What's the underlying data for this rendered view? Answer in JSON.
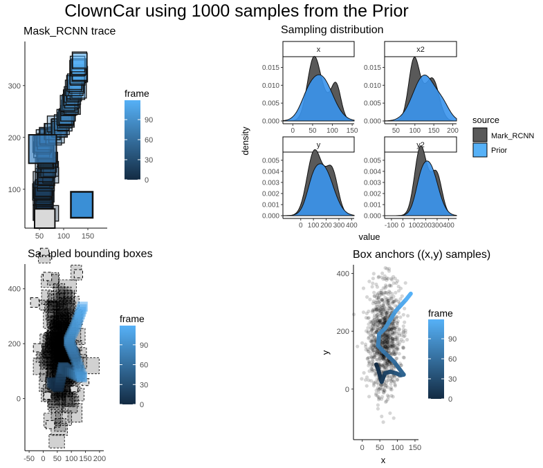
{
  "page_title": "ClownCar using 1000 samples from the Prior",
  "colors": {
    "frame_low": "#132b43",
    "frame_high": "#56b1f7",
    "mask_rcnn_fill": "#595959",
    "prior_fill": "#3a94ec",
    "box_fill": "#d9d9d9"
  },
  "chart_data": [
    {
      "id": "mask-rcnn-trace",
      "type": "scatter",
      "title": "Mask_RCNN trace",
      "x_ticks": [
        50,
        100,
        150
      ],
      "y_ticks": [
        100,
        200,
        300
      ],
      "xlim": [
        20,
        190
      ],
      "ylim": [
        25,
        385
      ],
      "legend": {
        "title": "frame",
        "ticks": [
          0,
          30,
          60,
          90
        ],
        "placement": "right"
      },
      "series": [
        {
          "name": "trace",
          "frames": 120,
          "start": {
            "x": 60,
            "y": 60,
            "w": 50,
            "h": 50
          },
          "end": {
            "x": 132,
            "y": 335,
            "w": 46,
            "h": 46
          }
        }
      ]
    },
    {
      "id": "sampling-distribution",
      "type": "area",
      "title": "Sampling distribution",
      "xlabel": "value",
      "ylabel": "density",
      "legend": {
        "title": "source",
        "entries": [
          "Mark_RCNN",
          "Prior"
        ],
        "placement": "right"
      },
      "facets": [
        {
          "label": "x",
          "x_ticks": [
            "0",
            "50",
            "100",
            "150"
          ],
          "xlim": [
            -25,
            155
          ],
          "y_ticks": [
            "0.000",
            "0.005",
            "0.010",
            "0.015"
          ],
          "ylim": [
            0,
            0.018
          ],
          "series": [
            {
              "name": "Mark_RCNN",
              "peaks": [
                [
                  52,
                  0.0155,
                  16
                ],
                [
                  110,
                  0.0085,
                  12
                ],
                [
                  80,
                  0.0055,
                  22
                ]
              ]
            },
            {
              "name": "Prior",
              "peaks": [
                [
                  70,
                  0.0125,
                  30
                ],
                [
                  35,
                  0.0025,
                  18
                ]
              ]
            }
          ]
        },
        {
          "label": "x2",
          "x_ticks": [
            "50",
            "100",
            "150",
            "200"
          ],
          "xlim": [
            20,
            210
          ],
          "y_ticks": [
            "0.000",
            "0.005",
            "0.010",
            "0.015"
          ],
          "ylim": [
            0,
            0.018
          ],
          "series": [
            {
              "name": "Mark_RCNN",
              "peaks": [
                [
                  97,
                  0.015,
                  14
                ],
                [
                  150,
                  0.0085,
                  16
                ],
                [
                  125,
                  0.006,
                  22
                ]
              ]
            },
            {
              "name": "Prior",
              "peaks": [
                [
                  125,
                  0.0128,
                  30
                ],
                [
                  175,
                  0.003,
                  18
                ]
              ]
            }
          ]
        },
        {
          "label": "y",
          "x_ticks": [
            "0",
            "100",
            "200",
            "300",
            "400"
          ],
          "xlim": [
            -140,
            420
          ],
          "y_ticks": [
            "0.000",
            "0.001",
            "0.002",
            "0.003",
            "0.004",
            "0.005"
          ],
          "ylim": [
            0,
            0.0058
          ],
          "series": [
            {
              "name": "Mark_RCNN",
              "peaks": [
                [
                  100,
                  0.0048,
                  55
                ],
                [
                  250,
                  0.003,
                  45
                ],
                [
                  180,
                  0.002,
                  70
                ]
              ]
            },
            {
              "name": "Prior",
              "peaks": [
                [
                  175,
                  0.0044,
                  80
                ],
                [
                  90,
                  0.0012,
                  45
                ]
              ]
            }
          ]
        },
        {
          "label": "y2",
          "x_ticks": [
            "-100",
            "0",
            "100",
            "200",
            "300",
            "400"
          ],
          "xlim": [
            -160,
            470
          ],
          "y_ticks": [
            "0.000",
            "0.001",
            "0.002",
            "0.003",
            "0.004",
            "0.005"
          ],
          "ylim": [
            0,
            0.0058
          ],
          "series": [
            {
              "name": "Mark_RCNN",
              "peaks": [
                [
                  150,
                  0.0053,
                  50
                ],
                [
                  300,
                  0.0028,
                  45
                ],
                [
                  230,
                  0.0018,
                  70
                ]
              ]
            },
            {
              "name": "Prior",
              "peaks": [
                [
                  230,
                  0.0046,
                  75
                ],
                [
                  150,
                  0.0012,
                  45
                ]
              ]
            }
          ]
        }
      ]
    },
    {
      "id": "sampled-bounding-boxes",
      "type": "scatter",
      "title": "Sampled bounding boxes",
      "x_ticks": [
        -50,
        0,
        50,
        100,
        150,
        200
      ],
      "y_ticks": [
        0,
        200,
        400
      ],
      "xlim": [
        -65,
        215
      ],
      "ylim": [
        -190,
        490
      ],
      "legend": {
        "title": "frame",
        "ticks": [
          0,
          30,
          60,
          90
        ],
        "placement": "right"
      }
    },
    {
      "id": "box-anchors",
      "type": "scatter",
      "title": "Box anchors ((x,y) samples)",
      "xlabel": "x",
      "ylabel": "y",
      "x_ticks": [
        0,
        50,
        100,
        150
      ],
      "y_ticks": [
        0,
        200,
        400
      ],
      "xlim": [
        -25,
        160
      ],
      "ylim": [
        -175,
        430
      ],
      "n_samples": 1000,
      "legend": {
        "title": "frame",
        "ticks": [
          0,
          30,
          60,
          90
        ],
        "placement": "right"
      },
      "trace": [
        [
          40,
          85
        ],
        [
          45,
          70
        ],
        [
          55,
          25
        ],
        [
          65,
          55
        ],
        [
          80,
          60
        ],
        [
          95,
          55
        ],
        [
          110,
          48
        ],
        [
          118,
          50
        ],
        [
          90,
          95
        ],
        [
          60,
          130
        ],
        [
          45,
          150
        ],
        [
          48,
          190
        ],
        [
          65,
          210
        ],
        [
          80,
          240
        ],
        [
          95,
          270
        ],
        [
          110,
          290
        ],
        [
          125,
          310
        ],
        [
          138,
          330
        ]
      ]
    }
  ]
}
